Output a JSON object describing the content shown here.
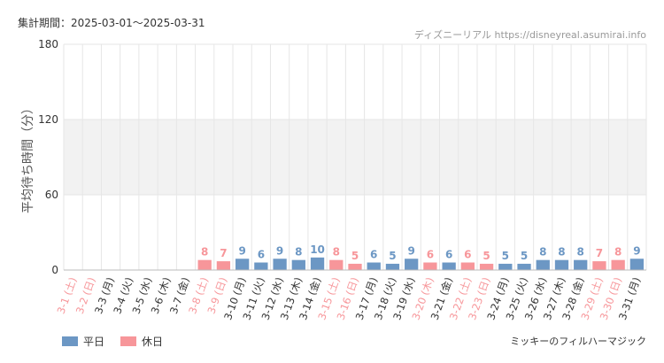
{
  "header": {
    "period": "集計期間：2025-03-01～2025-03-31",
    "source": "ディズニーリアル https://disneyreal.asumirai.info"
  },
  "footer": {
    "attraction": "ミッキーのフィルハーマジック"
  },
  "colors": {
    "weekday": "#6c97c4",
    "holiday": "#f7969a",
    "band": "#f2f2f2",
    "grid": "#e6e6e6"
  },
  "chart_data": {
    "type": "bar",
    "ylabel": "平均待ち時間（分）",
    "ylim": [
      0,
      180
    ],
    "yticks": [
      0,
      60,
      120,
      180
    ],
    "shaded_band": [
      60,
      120
    ],
    "categories": [
      "3-1 (土)",
      "3-2 (日)",
      "3-3 (月)",
      "3-4 (火)",
      "3-5 (水)",
      "3-6 (木)",
      "3-7 (金)",
      "3-8 (土)",
      "3-9 (日)",
      "3-10 (月)",
      "3-11 (火)",
      "3-12 (水)",
      "3-13 (木)",
      "3-14 (金)",
      "3-15 (土)",
      "3-16 (日)",
      "3-17 (月)",
      "3-18 (火)",
      "3-19 (水)",
      "3-20 (木)",
      "3-21 (金)",
      "3-22 (土)",
      "3-23 (日)",
      "3-24 (月)",
      "3-25 (火)",
      "3-26 (水)",
      "3-27 (木)",
      "3-28 (金)",
      "3-29 (土)",
      "3-30 (日)",
      "3-31 (月)"
    ],
    "values": [
      null,
      null,
      null,
      null,
      null,
      null,
      null,
      8,
      7,
      9,
      6,
      9,
      8,
      10,
      8,
      5,
      6,
      5,
      9,
      6,
      6,
      6,
      5,
      5,
      5,
      8,
      8,
      8,
      7,
      8,
      9
    ],
    "holiday": [
      true,
      true,
      false,
      false,
      false,
      false,
      false,
      true,
      true,
      false,
      false,
      false,
      false,
      false,
      true,
      true,
      false,
      false,
      false,
      true,
      false,
      true,
      true,
      false,
      false,
      false,
      false,
      false,
      true,
      true,
      false
    ],
    "legend": [
      {
        "label": "平日",
        "type": "weekday"
      },
      {
        "label": "休日",
        "type": "holiday"
      }
    ],
    "legend_position": "bottom-left",
    "grid": true
  }
}
